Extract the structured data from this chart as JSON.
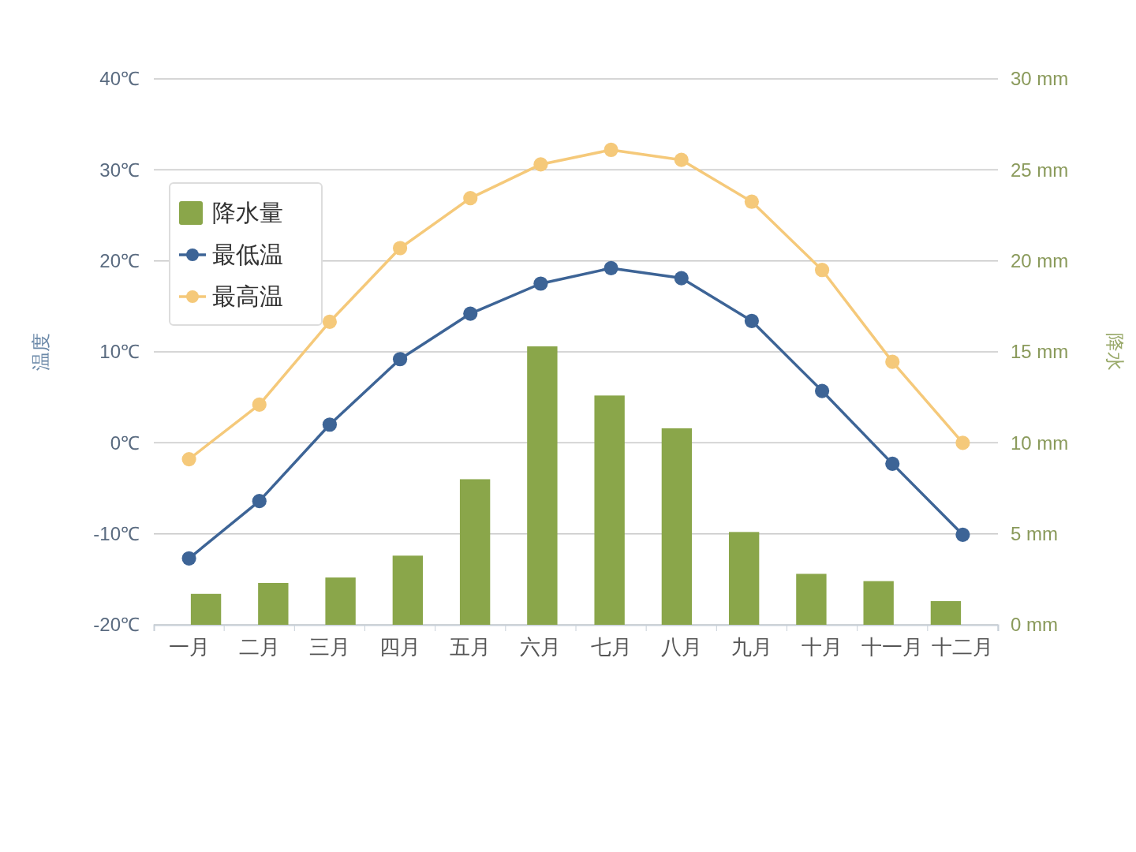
{
  "chart_data": {
    "type": "bar",
    "ylabel": "温度",
    "y2label": "降水",
    "categories": [
      "一月",
      "二月",
      "三月",
      "四月",
      "五月",
      "六月",
      "七月",
      "八月",
      "九月",
      "十月",
      "十一月",
      "十二月"
    ],
    "series": [
      {
        "name": "降水量",
        "axis": "y2",
        "color": "#8aa64a",
        "values": [
          1.7,
          2.3,
          2.6,
          3.8,
          8.0,
          15.3,
          12.6,
          10.8,
          5.1,
          2.8,
          2.4,
          1.3
        ]
      },
      {
        "name": "最低温",
        "type": "line",
        "axis": "y",
        "color": "#3d6496",
        "values": [
          -12.7,
          -6.4,
          2.0,
          9.2,
          14.2,
          17.5,
          19.2,
          18.1,
          13.4,
          5.7,
          -2.3,
          -10.1
        ]
      },
      {
        "name": "最高温",
        "type": "line",
        "axis": "y",
        "color": "#f5c97a",
        "values": [
          -1.8,
          4.2,
          13.3,
          21.4,
          26.9,
          30.6,
          32.2,
          31.1,
          26.5,
          19.0,
          8.9,
          0.0
        ]
      }
    ],
    "ylim": [
      -20,
      40
    ],
    "yticks": [
      {
        "value": -20,
        "label": "-20℃"
      },
      {
        "value": -10,
        "label": "-10℃"
      },
      {
        "value": 0,
        "label": "0℃"
      },
      {
        "value": 10,
        "label": "10℃"
      },
      {
        "value": 20,
        "label": "20℃"
      },
      {
        "value": 30,
        "label": "30℃"
      },
      {
        "value": 40,
        "label": "40℃"
      }
    ],
    "y2lim": [
      0,
      30
    ],
    "y2ticks": [
      {
        "value": 0,
        "label": "0 mm"
      },
      {
        "value": 5,
        "label": "5 mm"
      },
      {
        "value": 10,
        "label": "10 mm"
      },
      {
        "value": 15,
        "label": "15 mm"
      },
      {
        "value": 20,
        "label": "20 mm"
      },
      {
        "value": 25,
        "label": "25 mm"
      },
      {
        "value": 30,
        "label": "30 mm"
      }
    ],
    "grid": "y",
    "legend": "top left",
    "marker": "circle",
    "line_style": "solid"
  }
}
